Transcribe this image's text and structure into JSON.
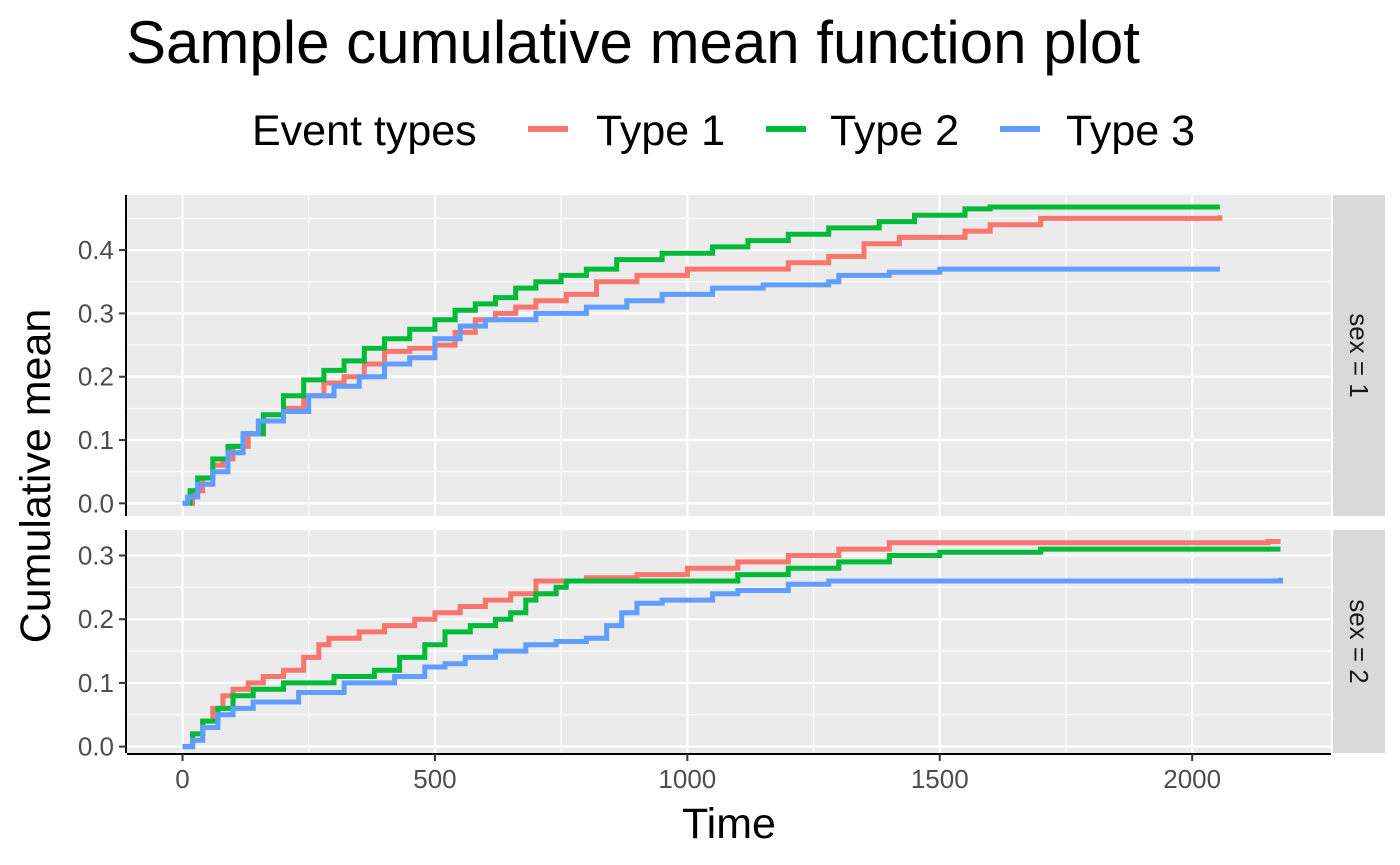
{
  "chart_data": {
    "type": "line",
    "title": "Sample cumulative mean function plot",
    "xlabel": "Time",
    "ylabel": "Cumulative mean",
    "legend": {
      "title": "Event types",
      "position": "top",
      "entries": [
        "Type 1",
        "Type 2",
        "Type 3"
      ]
    },
    "colors": {
      "Type 1": "#f8766d",
      "Type 2": "#00ba38",
      "Type 3": "#619cff"
    },
    "step": true,
    "grid": true,
    "xlim": [
      -110,
      2275
    ],
    "xticks": [
      0,
      500,
      1000,
      1500,
      2000
    ],
    "x_tick_labels": [
      "0",
      "500",
      "1000",
      "1500",
      "2000"
    ],
    "panels": [
      {
        "strip_label": "sex = 1",
        "ylim": [
          -0.02,
          0.487
        ],
        "yticks": [
          0.0,
          0.1,
          0.2,
          0.3,
          0.4
        ],
        "y_tick_labels": [
          "0.0",
          "0.1",
          "0.2",
          "0.3",
          "0.4"
        ],
        "series": [
          {
            "name": "Type 1",
            "x": [
              0,
              20,
              40,
              60,
              80,
              100,
              130,
              160,
              200,
              240,
              280,
              320,
              360,
              400,
              450,
              500,
              540,
              580,
              620,
              660,
              700,
              760,
              820,
              900,
              1000,
              1100,
              1200,
              1280,
              1350,
              1420,
              1550,
              1600,
              1700,
              2055
            ],
            "y": [
              0.0,
              0.02,
              0.04,
              0.06,
              0.07,
              0.09,
              0.11,
              0.13,
              0.15,
              0.17,
              0.19,
              0.2,
              0.22,
              0.24,
              0.245,
              0.25,
              0.27,
              0.29,
              0.3,
              0.31,
              0.32,
              0.33,
              0.35,
              0.36,
              0.37,
              0.37,
              0.38,
              0.39,
              0.41,
              0.42,
              0.43,
              0.44,
              0.45,
              0.455
            ]
          },
          {
            "name": "Type 2",
            "x": [
              0,
              15,
              30,
              60,
              90,
              120,
              160,
              200,
              240,
              280,
              320,
              360,
              400,
              450,
              500,
              540,
              580,
              620,
              660,
              700,
              750,
              800,
              860,
              950,
              1050,
              1120,
              1200,
              1280,
              1380,
              1450,
              1550,
              1600,
              2055
            ],
            "y": [
              0.0,
              0.02,
              0.04,
              0.07,
              0.09,
              0.11,
              0.14,
              0.17,
              0.195,
              0.21,
              0.225,
              0.245,
              0.26,
              0.275,
              0.29,
              0.305,
              0.315,
              0.325,
              0.34,
              0.35,
              0.36,
              0.37,
              0.385,
              0.395,
              0.405,
              0.415,
              0.425,
              0.435,
              0.445,
              0.455,
              0.465,
              0.468,
              0.468
            ]
          },
          {
            "name": "Type 3",
            "x": [
              0,
              10,
              30,
              60,
              90,
              120,
              150,
              200,
              250,
              300,
              350,
              400,
              450,
              500,
              550,
              600,
              700,
              800,
              880,
              950,
              1050,
              1150,
              1280,
              1300,
              1400,
              1500,
              2055
            ],
            "y": [
              0.0,
              0.01,
              0.03,
              0.05,
              0.08,
              0.11,
              0.13,
              0.145,
              0.17,
              0.185,
              0.2,
              0.22,
              0.23,
              0.26,
              0.28,
              0.29,
              0.3,
              0.31,
              0.32,
              0.33,
              0.34,
              0.345,
              0.35,
              0.36,
              0.365,
              0.37,
              0.37
            ]
          }
        ]
      },
      {
        "strip_label": "sex = 2",
        "ylim": [
          -0.01,
          0.34
        ],
        "yticks": [
          0.0,
          0.1,
          0.2,
          0.3
        ],
        "y_tick_labels": [
          "0.0",
          "0.1",
          "0.2",
          "0.3"
        ],
        "series": [
          {
            "name": "Type 1",
            "x": [
              0,
              20,
              40,
              60,
              80,
              100,
              130,
              160,
              200,
              240,
              270,
              290,
              350,
              400,
              460,
              500,
              550,
              600,
              650,
              700,
              800,
              900,
              1000,
              1100,
              1200,
              1300,
              1400,
              2150,
              2175
            ],
            "y": [
              0.0,
              0.02,
              0.04,
              0.06,
              0.08,
              0.09,
              0.1,
              0.11,
              0.12,
              0.14,
              0.16,
              0.17,
              0.18,
              0.19,
              0.2,
              0.21,
              0.22,
              0.23,
              0.24,
              0.26,
              0.265,
              0.27,
              0.28,
              0.29,
              0.3,
              0.31,
              0.32,
              0.322,
              0.322
            ]
          },
          {
            "name": "Type 2",
            "x": [
              0,
              20,
              40,
              70,
              100,
              140,
              200,
              300,
              380,
              430,
              480,
              520,
              570,
              620,
              650,
              680,
              700,
              740,
              760,
              1100,
              1200,
              1300,
              1400,
              1500,
              1700,
              2175
            ],
            "y": [
              0.0,
              0.02,
              0.04,
              0.06,
              0.08,
              0.09,
              0.1,
              0.11,
              0.12,
              0.14,
              0.16,
              0.18,
              0.19,
              0.2,
              0.21,
              0.23,
              0.24,
              0.25,
              0.26,
              0.27,
              0.28,
              0.29,
              0.3,
              0.305,
              0.31,
              0.31
            ]
          },
          {
            "name": "Type 3",
            "x": [
              0,
              20,
              40,
              70,
              100,
              140,
              230,
              320,
              420,
              480,
              520,
              560,
              620,
              680,
              740,
              800,
              840,
              870,
              900,
              950,
              1050,
              1100,
              1200,
              1280,
              2175
            ],
            "y": [
              0.0,
              0.01,
              0.03,
              0.05,
              0.06,
              0.07,
              0.085,
              0.1,
              0.11,
              0.125,
              0.13,
              0.14,
              0.15,
              0.16,
              0.165,
              0.17,
              0.19,
              0.21,
              0.225,
              0.23,
              0.24,
              0.245,
              0.255,
              0.26,
              0.265
            ]
          }
        ]
      }
    ]
  }
}
